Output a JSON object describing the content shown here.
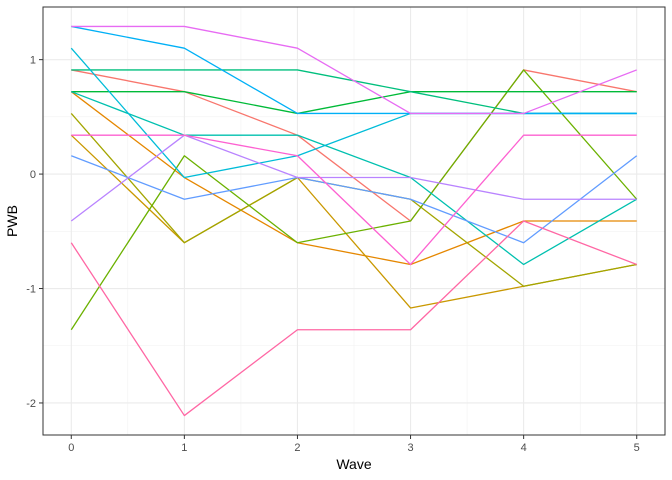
{
  "chart_data": {
    "type": "line",
    "xlabel": "Wave",
    "ylabel": "PWB",
    "xlim": [
      -0.25,
      5.25
    ],
    "ylim": [
      -2.28,
      1.46
    ],
    "x_ticks": [
      0,
      1,
      2,
      3,
      4,
      5
    ],
    "y_ticks": [
      -2,
      -1,
      0,
      1
    ],
    "x_tick_labels": [
      "0",
      "1",
      "2",
      "3",
      "4",
      "5"
    ],
    "y_tick_labels": [
      "-2",
      "-1",
      "0",
      "1"
    ],
    "grid": true,
    "legend": "none",
    "x": [
      0,
      1,
      2,
      3,
      4,
      5
    ],
    "series": [
      {
        "color": "#F8766D",
        "values": [
          0.91,
          0.72,
          0.34,
          -0.41,
          0.91,
          0.72
        ]
      },
      {
        "color": "#E58700",
        "values": [
          0.72,
          -0.03,
          -0.6,
          -0.79,
          -0.41,
          -0.41
        ]
      },
      {
        "color": "#C99800",
        "values": [
          0.34,
          -0.6,
          -0.03,
          -1.17,
          -0.98,
          -0.79
        ]
      },
      {
        "color": "#A3A500",
        "values": [
          0.53,
          -0.6,
          -0.03,
          -0.22,
          -0.98,
          -0.79
        ]
      },
      {
        "color": "#6BB100",
        "values": [
          -1.36,
          0.16,
          -0.6,
          -0.41,
          0.91,
          -0.22
        ]
      },
      {
        "color": "#00BA38",
        "values": [
          0.72,
          0.72,
          0.53,
          0.72,
          0.72,
          0.72
        ]
      },
      {
        "color": "#00BF7D",
        "values": [
          0.91,
          0.91,
          0.91,
          0.72,
          0.53,
          0.53
        ]
      },
      {
        "color": "#00C0AF",
        "values": [
          0.72,
          0.34,
          0.34,
          -0.03,
          -0.79,
          -0.22
        ]
      },
      {
        "color": "#00BCD8",
        "values": [
          1.1,
          -0.03,
          0.16,
          0.53,
          0.53,
          0.53
        ]
      },
      {
        "color": "#00B0F6",
        "values": [
          1.29,
          1.1,
          0.53,
          0.53,
          0.53,
          0.53
        ]
      },
      {
        "color": "#619CFF",
        "values": [
          0.16,
          -0.22,
          -0.03,
          -0.22,
          -0.6,
          0.16
        ]
      },
      {
        "color": "#B983FF",
        "values": [
          -0.41,
          0.34,
          -0.03,
          -0.03,
          -0.22,
          -0.22
        ]
      },
      {
        "color": "#E76BF3",
        "values": [
          1.29,
          1.29,
          1.1,
          0.53,
          0.53,
          0.91
        ]
      },
      {
        "color": "#FD61D1",
        "values": [
          0.34,
          0.34,
          0.16,
          -0.79,
          0.34,
          0.34
        ]
      },
      {
        "color": "#FF67A4",
        "values": [
          -0.6,
          -2.11,
          -1.36,
          -1.36,
          -0.41,
          -0.79
        ]
      }
    ]
  }
}
